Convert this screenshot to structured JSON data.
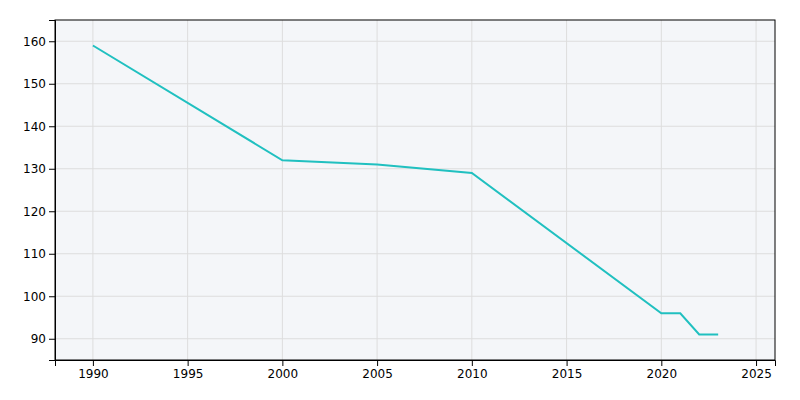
{
  "chart_data": {
    "type": "line",
    "x": [
      1990,
      2000,
      2005,
      2010,
      2020,
      2021,
      2022,
      2023
    ],
    "values": [
      159,
      132,
      131,
      129,
      96,
      96,
      91,
      91
    ],
    "color": "#20C0C0",
    "xlim": [
      1988,
      2026
    ],
    "ylim": [
      85,
      165
    ],
    "xticks": [
      1990,
      1995,
      2000,
      2005,
      2010,
      2015,
      2020,
      2025
    ],
    "yticks": [
      90,
      100,
      110,
      120,
      130,
      140,
      150,
      160
    ],
    "grid": true
  }
}
